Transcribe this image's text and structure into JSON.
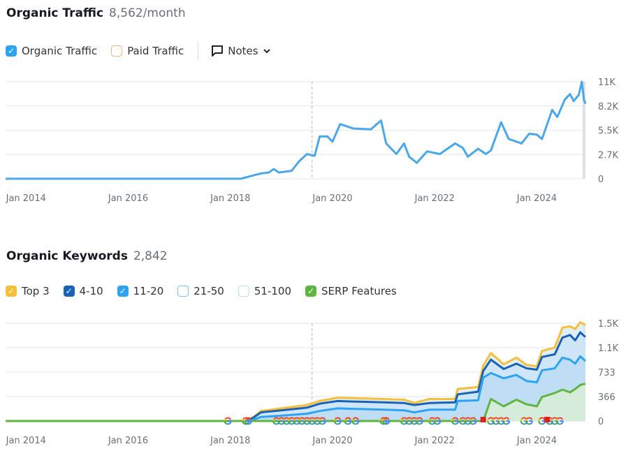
{
  "traffic": {
    "title": "Organic Traffic",
    "value": "8,562/month",
    "legend": [
      {
        "label": "Organic Traffic",
        "checked": true,
        "color": "#2ea3f2"
      },
      {
        "label": "Paid Traffic",
        "checked": false,
        "color": "#e8b88a"
      }
    ],
    "notes_label": "Notes"
  },
  "keywords": {
    "title": "Organic Keywords",
    "value": "2,842",
    "legend": [
      {
        "label": "Top 3",
        "checked": true,
        "color": "#f7be38"
      },
      {
        "label": "4-10",
        "checked": true,
        "color": "#1a62b5"
      },
      {
        "label": "11-20",
        "checked": true,
        "color": "#2ea3f2"
      },
      {
        "label": "21-50",
        "checked": false,
        "color": "#7cc4f0"
      },
      {
        "label": "51-100",
        "checked": false,
        "color": "#b7e0f7"
      },
      {
        "label": "SERP Features",
        "checked": true,
        "color": "#5fb53f"
      }
    ]
  },
  "chart_data": [
    {
      "type": "line",
      "xlabel": "",
      "ylabel": "",
      "xlim": [
        2013.6,
        2024.95
      ],
      "ylim": [
        0,
        11000
      ],
      "x_ticks": [
        "Jan 2014",
        "Jan 2016",
        "Jan 2018",
        "Jan 2020",
        "Jan 2022",
        "Jan 2024"
      ],
      "x_tick_years": [
        2014,
        2016,
        2018,
        2020,
        2022,
        2024
      ],
      "y_ticks": [
        "0",
        "2.7K",
        "5.5K",
        "8.2K",
        "11K"
      ],
      "y_tick_values": [
        0,
        2750,
        5500,
        8250,
        11000
      ],
      "grid": true,
      "series": [
        {
          "name": "Organic Traffic",
          "color": "#4aa8e8",
          "x": [
            2013.6,
            2018.2,
            2018.4,
            2018.6,
            2018.75,
            2018.85,
            2018.95,
            2019.2,
            2019.35,
            2019.5,
            2019.65,
            2019.75,
            2019.9,
            2020.0,
            2020.15,
            2020.4,
            2020.75,
            2020.95,
            2021.05,
            2021.25,
            2021.4,
            2021.5,
            2021.65,
            2021.85,
            2022.1,
            2022.4,
            2022.55,
            2022.65,
            2022.85,
            2023.0,
            2023.1,
            2023.3,
            2023.45,
            2023.7,
            2023.85,
            2024.0,
            2024.1,
            2024.3,
            2024.4,
            2024.55,
            2024.65,
            2024.72,
            2024.82,
            2024.88,
            2024.92,
            2024.95
          ],
          "y": [
            0,
            0,
            300,
            600,
            700,
            1100,
            700,
            900,
            2000,
            2800,
            2600,
            4800,
            4800,
            4200,
            6200,
            5700,
            5600,
            6600,
            4000,
            2800,
            4000,
            2500,
            1800,
            3100,
            2800,
            4000,
            3500,
            2500,
            3400,
            2800,
            3200,
            6400,
            4500,
            4000,
            5100,
            5000,
            4500,
            7800,
            7000,
            9000,
            9600,
            8800,
            9500,
            11000,
            9000,
            8500
          ]
        }
      ]
    },
    {
      "type": "area",
      "xlabel": "",
      "ylabel": "",
      "xlim": [
        2013.6,
        2024.95
      ],
      "ylim": [
        0,
        1466
      ],
      "x_ticks": [
        "Jan 2014",
        "Jan 2016",
        "Jan 2018",
        "Jan 2020",
        "Jan 2022",
        "Jan 2024"
      ],
      "x_tick_years": [
        2014,
        2016,
        2018,
        2020,
        2022,
        2024
      ],
      "y_ticks": [
        "0",
        "366",
        "733",
        "1.1K",
        "1.5K"
      ],
      "y_tick_values": [
        0,
        366,
        733,
        1100,
        1466
      ],
      "grid": true,
      "x": [
        2013.6,
        2018.3,
        2018.45,
        2018.6,
        2019.0,
        2019.5,
        2019.75,
        2020.1,
        2020.5,
        2021.0,
        2021.4,
        2021.6,
        2021.9,
        2022.4,
        2022.45,
        2022.85,
        2022.95,
        2023.1,
        2023.35,
        2023.6,
        2023.8,
        2024.0,
        2024.1,
        2024.35,
        2024.5,
        2024.65,
        2024.75,
        2024.85,
        2024.95
      ],
      "series": [
        {
          "name": "Top 3",
          "color": "#f7be38",
          "values": [
            0,
            0,
            60,
            150,
            190,
            240,
            300,
            350,
            340,
            330,
            320,
            270,
            330,
            330,
            480,
            510,
            830,
            1020,
            850,
            950,
            840,
            820,
            1050,
            1100,
            1400,
            1420,
            1380,
            1480,
            1440
          ]
        },
        {
          "name": "4-10",
          "color": "#1a62b5",
          "values": [
            0,
            0,
            50,
            130,
            160,
            200,
            260,
            300,
            290,
            280,
            270,
            240,
            270,
            280,
            400,
            440,
            750,
            920,
            780,
            860,
            790,
            770,
            960,
            1000,
            1250,
            1290,
            1210,
            1330,
            1260
          ]
        },
        {
          "name": "11-20",
          "color": "#2ea3f2",
          "values": [
            0,
            0,
            20,
            60,
            80,
            110,
            150,
            190,
            180,
            170,
            160,
            130,
            170,
            170,
            300,
            310,
            650,
            720,
            640,
            690,
            600,
            580,
            760,
            790,
            950,
            920,
            860,
            970,
            900
          ]
        },
        {
          "name": "SERP Features",
          "color": "#5fb53f",
          "values": [
            0,
            0,
            0,
            0,
            0,
            0,
            0,
            0,
            0,
            0,
            0,
            0,
            0,
            0,
            0,
            0,
            0,
            330,
            220,
            320,
            250,
            220,
            360,
            420,
            470,
            430,
            480,
            540,
            560
          ]
        }
      ],
      "google_update_markers": [
        2017.95,
        2018.3,
        2018.35,
        2018.9,
        2019.0,
        2019.1,
        2019.2,
        2019.3,
        2019.4,
        2019.5,
        2019.6,
        2019.7,
        2019.8,
        2020.1,
        2020.3,
        2020.45,
        2021.0,
        2021.05,
        2021.4,
        2021.5,
        2021.6,
        2021.7,
        2021.95,
        2022.05,
        2022.4,
        2022.55,
        2022.65,
        2022.75,
        2023.1,
        2023.2,
        2023.3,
        2023.4,
        2023.75,
        2023.85,
        2024.1,
        2024.25,
        2024.35,
        2024.45
      ],
      "flag_markers": [
        2022.95,
        2024.2
      ]
    }
  ]
}
